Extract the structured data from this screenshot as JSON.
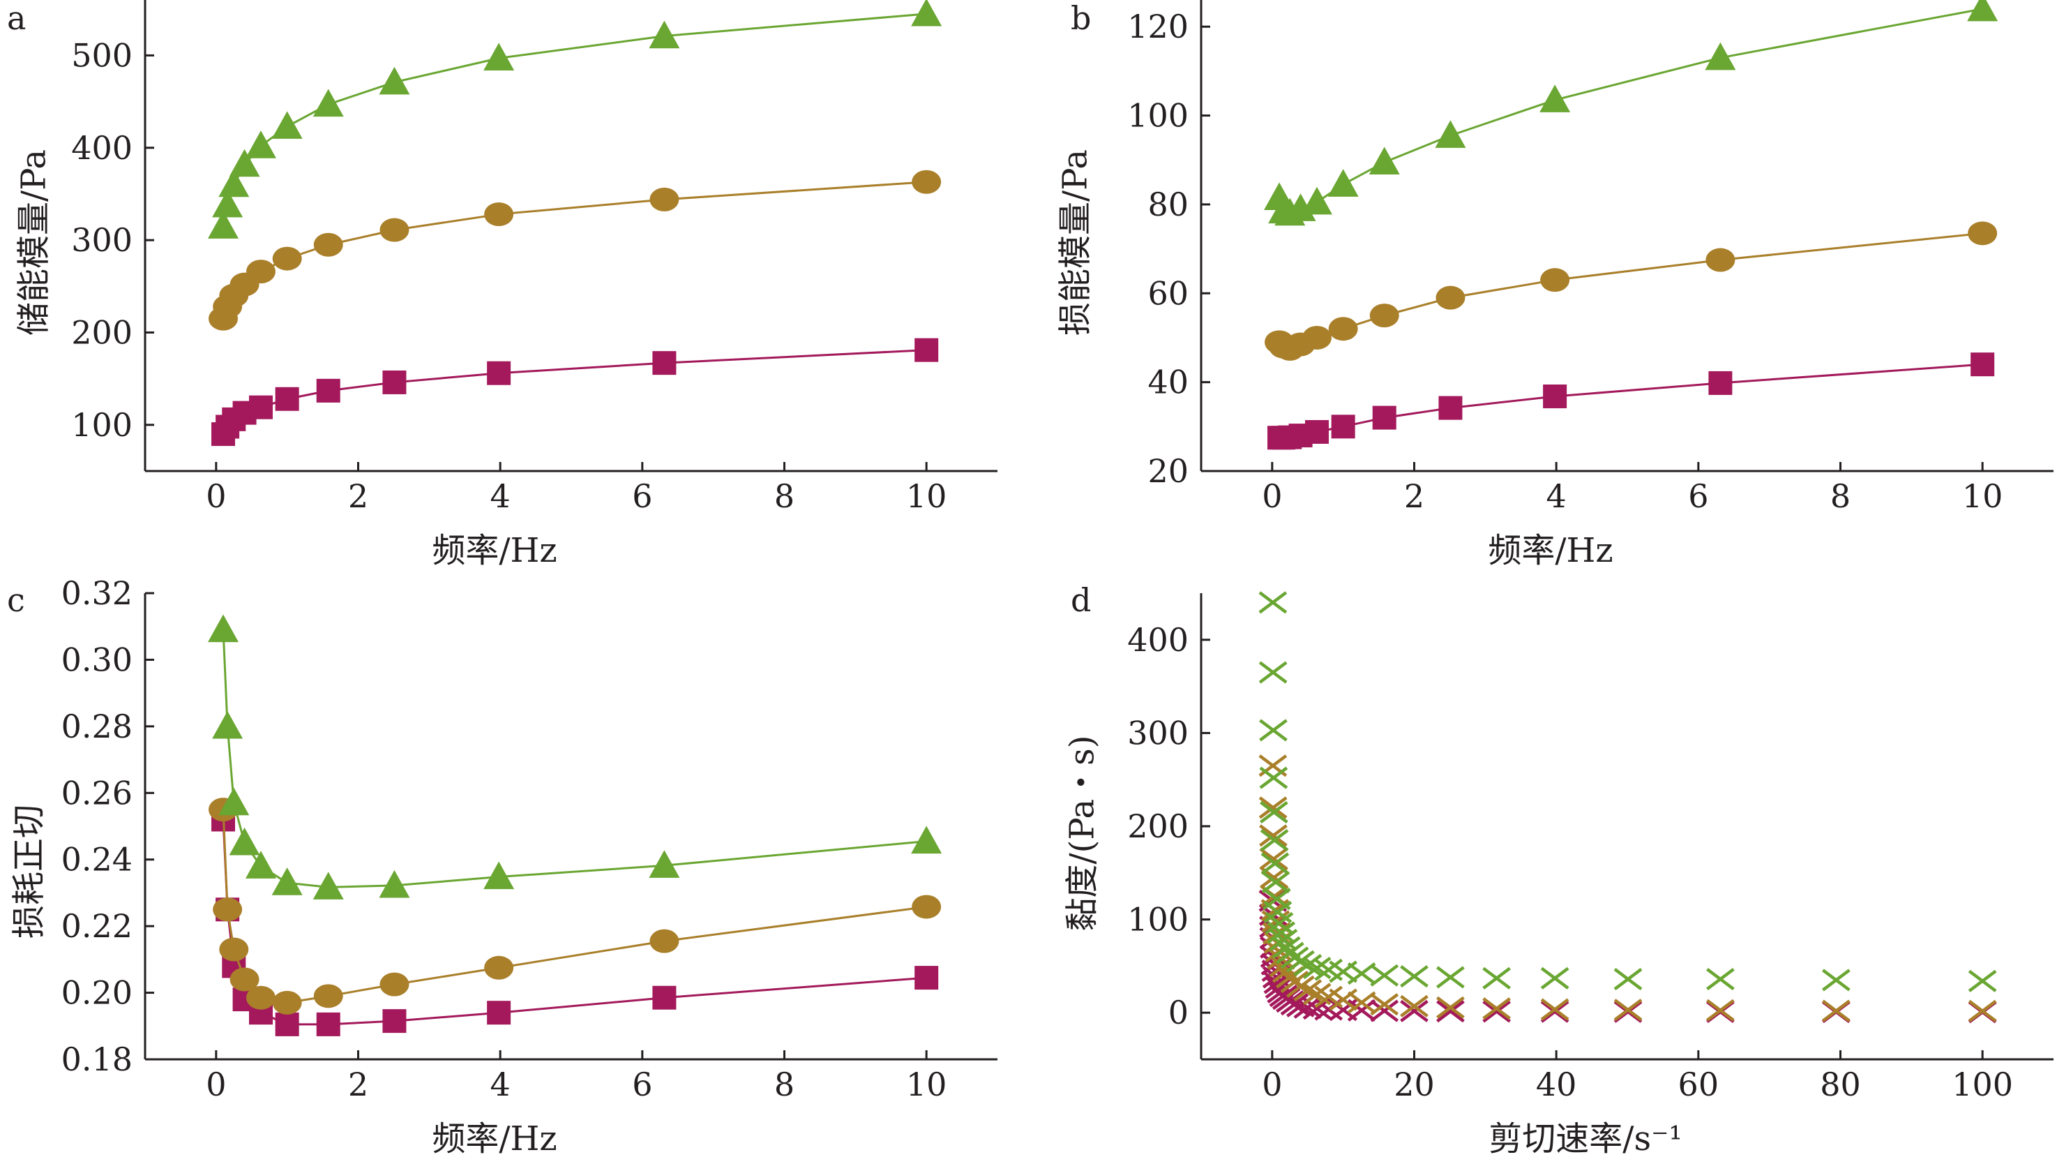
{
  "chart_data": [
    {
      "panel": "a",
      "type": "line",
      "xlabel": "频率/Hz",
      "ylabel": "储能模量/Pa",
      "xlim": [
        -1,
        11
      ],
      "ylim": [
        50,
        560
      ],
      "xticks": [
        0,
        2,
        4,
        6,
        8,
        10
      ],
      "yticks": [
        100,
        200,
        300,
        400,
        500
      ],
      "x": [
        0.1,
        0.16,
        0.25,
        0.4,
        0.63,
        1.0,
        1.58,
        2.51,
        3.98,
        6.31,
        10.0
      ],
      "series": [
        {
          "marker": "square",
          "color": "#a3195b",
          "values": [
            90,
            98,
            106,
            113,
            119,
            128,
            137,
            146,
            156,
            167,
            181
          ]
        },
        {
          "marker": "circle",
          "color": "#a97f2a",
          "values": [
            215,
            228,
            240,
            252,
            266,
            280,
            295,
            311,
            328,
            344,
            363
          ]
        },
        {
          "marker": "triangle",
          "color": "#6aa632",
          "values": [
            315,
            338,
            360,
            382,
            402,
            423,
            447,
            471,
            497,
            521,
            545
          ]
        }
      ]
    },
    {
      "panel": "b",
      "type": "line",
      "xlabel": "频率/Hz",
      "ylabel": "损能模量/Pa",
      "xlim": [
        -1,
        11
      ],
      "ylim": [
        20,
        126
      ],
      "xticks": [
        0,
        2,
        4,
        6,
        8,
        10
      ],
      "yticks": [
        20,
        40,
        60,
        80,
        100,
        120
      ],
      "x": [
        0.1,
        0.16,
        0.25,
        0.4,
        0.63,
        1.0,
        1.58,
        2.51,
        3.98,
        6.31,
        10.0
      ],
      "series": [
        {
          "marker": "square",
          "color": "#a3195b",
          "values": [
            27.5,
            27.5,
            27.6,
            28,
            28.8,
            30,
            32,
            34.2,
            36.8,
            39.8,
            44
          ]
        },
        {
          "marker": "circle",
          "color": "#a97f2a",
          "values": [
            49,
            48,
            47.5,
            48.5,
            50,
            52,
            55,
            59,
            63,
            67.5,
            73.5
          ]
        },
        {
          "marker": "triangle",
          "color": "#6aa632",
          "values": [
            81.5,
            78.5,
            78,
            79,
            80.5,
            84.5,
            89.5,
            95.5,
            103.5,
            113,
            124
          ]
        }
      ]
    },
    {
      "panel": "c",
      "type": "line",
      "xlabel": "频率/Hz",
      "ylabel": "损耗正切",
      "xlim": [
        -1,
        11
      ],
      "ylim": [
        0.18,
        0.32
      ],
      "xticks": [
        0,
        2,
        4,
        6,
        8,
        10
      ],
      "yticks": [
        0.18,
        0.2,
        0.22,
        0.24,
        0.26,
        0.28,
        0.3,
        0.32
      ],
      "ytick_labels": [
        "0.18",
        "0.20",
        "0.22",
        "0.24",
        "0.26",
        "0.28",
        "0.30",
        "0.32"
      ],
      "x": [
        0.1,
        0.16,
        0.25,
        0.4,
        0.63,
        1.0,
        1.58,
        2.51,
        3.98,
        6.31,
        10.0
      ],
      "series": [
        {
          "marker": "square",
          "color": "#a3195b",
          "values": [
            0.252,
            0.225,
            0.208,
            0.198,
            0.194,
            0.1905,
            0.1905,
            0.1915,
            0.194,
            0.1985,
            0.2045
          ]
        },
        {
          "marker": "circle",
          "color": "#a97f2a",
          "values": [
            0.255,
            0.225,
            0.213,
            0.204,
            0.1985,
            0.197,
            0.199,
            0.2025,
            0.2075,
            0.2155,
            0.2258
          ]
        },
        {
          "marker": "triangle",
          "color": "#6aa632",
          "values": [
            0.309,
            0.28,
            0.257,
            0.245,
            0.238,
            0.233,
            0.2317,
            0.2322,
            0.2348,
            0.2382,
            0.2455
          ]
        }
      ]
    },
    {
      "panel": "d",
      "type": "scatter",
      "xlabel": "剪切速率/s⁻¹",
      "ylabel": "黏度/(Pa・s)",
      "xlim": [
        -10,
        110
      ],
      "ylim": [
        -50,
        450
      ],
      "xticks": [
        0,
        20,
        40,
        60,
        80,
        100
      ],
      "yticks": [
        0,
        100,
        200,
        300,
        400
      ],
      "series": [
        {
          "marker": "x",
          "color": "#a3195b",
          "x": [
            0.1,
            0.13,
            0.16,
            0.2,
            0.25,
            0.32,
            0.4,
            0.5,
            0.63,
            0.79,
            1.0,
            1.26,
            1.58,
            2.0,
            2.51,
            3.16,
            3.98,
            5.01,
            6.31,
            7.94,
            10.0,
            12.6,
            15.8,
            20,
            25.1,
            31.6,
            39.8,
            50.1,
            63.1,
            79.4,
            100
          ],
          "values": [
            120,
            105,
            92,
            80,
            70,
            60,
            52,
            45,
            38,
            32,
            27,
            22,
            18,
            15,
            12,
            9,
            7,
            5.5,
            4.5,
            3.5,
            3,
            2.5,
            2,
            1.8,
            1.5,
            1.3,
            1.1,
            1,
            0.9,
            0.8,
            0.7
          ]
        },
        {
          "marker": "x",
          "color": "#a97f2a",
          "x": [
            0.1,
            0.13,
            0.16,
            0.2,
            0.25,
            0.32,
            0.4,
            0.5,
            0.63,
            0.79,
            1.0,
            1.26,
            1.58,
            2.0,
            2.51,
            3.16,
            3.98,
            5.01,
            6.31,
            7.94,
            10.0,
            12.6,
            15.8,
            20,
            25.1,
            31.6,
            39.8,
            50.1,
            63.1,
            79.4,
            100
          ],
          "values": [
            265,
            220,
            190,
            165,
            145,
            125,
            110,
            98,
            85,
            75,
            66,
            58,
            50,
            44,
            38,
            33,
            28,
            24,
            20,
            17,
            14,
            11,
            9,
            7,
            5.5,
            4.5,
            3.5,
            3,
            2.5,
            2,
            1.8
          ]
        },
        {
          "marker": "x",
          "color": "#6aa632",
          "x": [
            0.1,
            0.13,
            0.16,
            0.2,
            0.25,
            0.32,
            0.4,
            0.5,
            0.63,
            0.79,
            1.0,
            1.26,
            1.58,
            2.0,
            2.51,
            3.16,
            3.98,
            5.01,
            6.31,
            7.94,
            10.0,
            12.6,
            15.8,
            20,
            25.1,
            31.6,
            39.8,
            50.1,
            63.1,
            79.4,
            100
          ],
          "values": [
            440,
            365,
            303,
            252,
            215,
            185,
            160,
            140,
            122,
            108,
            96,
            86,
            78,
            70,
            64,
            59,
            55,
            51,
            48,
            46,
            44,
            42,
            40,
            39,
            38,
            37,
            37,
            36,
            36,
            35,
            34
          ]
        }
      ]
    }
  ]
}
